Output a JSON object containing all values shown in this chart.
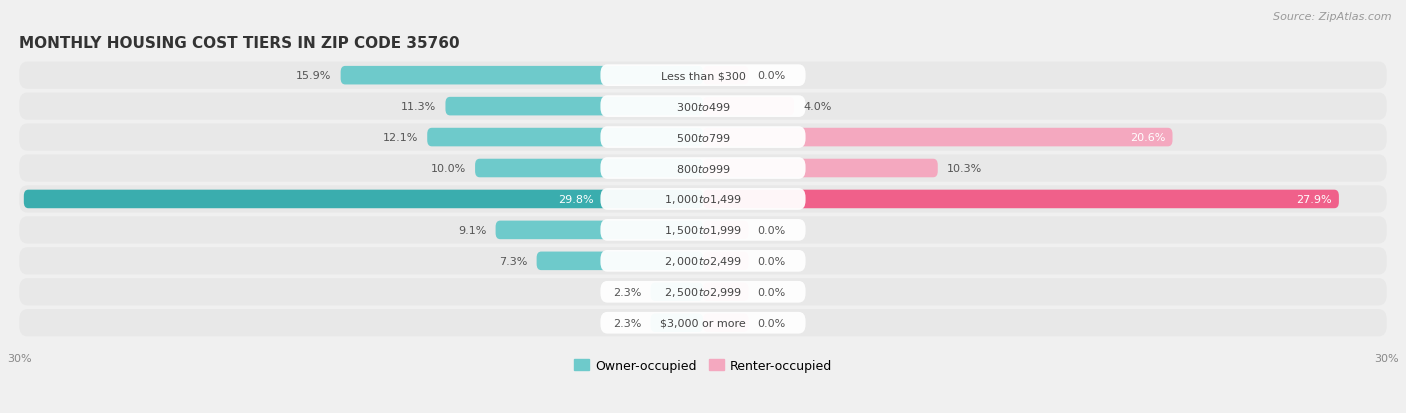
{
  "title": "Monthly Housing Cost Tiers in Zip Code 35760",
  "source_text": "Source: ZipAtlas.com",
  "categories": [
    "Less than $300",
    "$300 to $499",
    "$500 to $799",
    "$800 to $999",
    "$1,000 to $1,499",
    "$1,500 to $1,999",
    "$2,000 to $2,499",
    "$2,500 to $2,999",
    "$3,000 or more"
  ],
  "owner_values": [
    15.9,
    11.3,
    12.1,
    10.0,
    29.8,
    9.1,
    7.3,
    2.3,
    2.3
  ],
  "renter_values": [
    0.0,
    4.0,
    20.6,
    10.3,
    27.9,
    0.0,
    0.0,
    0.0,
    0.0
  ],
  "owner_color_normal": "#6ecacb",
  "owner_color_full": "#3aadae",
  "renter_color_normal": "#f4a8bf",
  "renter_color_full": "#f0608a",
  "owner_label": "Owner-occupied",
  "renter_label": "Renter-occupied",
  "xlim": 30.0,
  "background_color": "#f0f0f0",
  "row_bg_color": "#e8e8e8",
  "pill_bg_color": "#ffffff",
  "title_color": "#333333",
  "source_color": "#999999",
  "label_color_outside": "#555555",
  "label_color_inside": "#ffffff",
  "title_fontsize": 11,
  "source_fontsize": 8,
  "axis_label_fontsize": 8,
  "bar_label_fontsize": 8,
  "category_fontsize": 8,
  "pill_fontsize": 8
}
